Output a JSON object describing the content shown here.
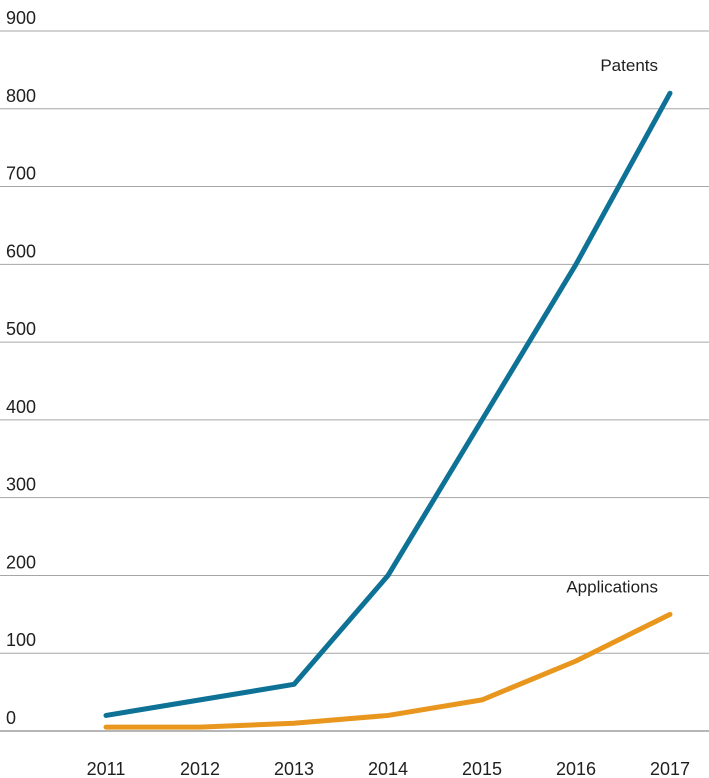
{
  "chart_data": {
    "type": "line",
    "title": "",
    "xlabel": "",
    "ylabel": "",
    "x": [
      "2011",
      "2012",
      "2013",
      "2014",
      "2015",
      "2016",
      "2017"
    ],
    "ylim": [
      0,
      900
    ],
    "yticks": [
      "0",
      "100",
      "200",
      "300",
      "400",
      "500",
      "600",
      "700",
      "800",
      "900"
    ],
    "grid": true,
    "legend": "inline labels at line ends",
    "series": [
      {
        "name": "Patents",
        "color": "#0e7196",
        "values": [
          20,
          40,
          60,
          200,
          400,
          600,
          820
        ]
      },
      {
        "name": "Applications",
        "color": "#e8961e",
        "values": [
          5,
          5,
          10,
          20,
          40,
          90,
          150
        ]
      }
    ]
  }
}
